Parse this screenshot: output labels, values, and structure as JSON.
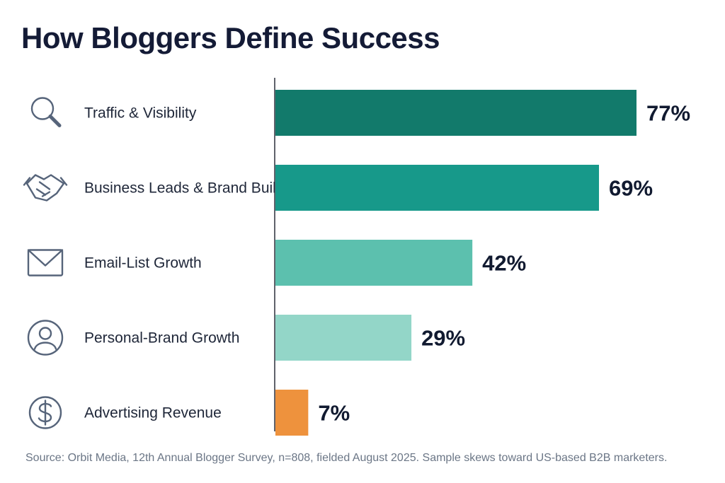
{
  "chart_data": {
    "type": "bar",
    "orientation": "horizontal",
    "title": "How Bloggers Define Success",
    "categories": [
      "Traffic & Visibility",
      "Business Leads & Brand Building",
      "Email-List Growth",
      "Personal-Brand Growth",
      "Advertising Revenue"
    ],
    "values": [
      77,
      69,
      42,
      29,
      7
    ],
    "value_labels": [
      "77%",
      "69%",
      "42%",
      "29%",
      "7%"
    ],
    "icons": [
      "search-icon",
      "handshake-icon",
      "envelope-icon",
      "user-icon",
      "dollar-icon"
    ],
    "bar_colors": [
      "#127a6b",
      "#17998a",
      "#5cc0ae",
      "#93d6c8",
      "#ee923d"
    ],
    "xlim": [
      0,
      77
    ],
    "grid": false,
    "legend": "none"
  },
  "source": "Source:  Orbit Media, 12th Annual Blogger Survey, n=808, fielded August 2025. Sample skews toward US-based B2B marketers."
}
